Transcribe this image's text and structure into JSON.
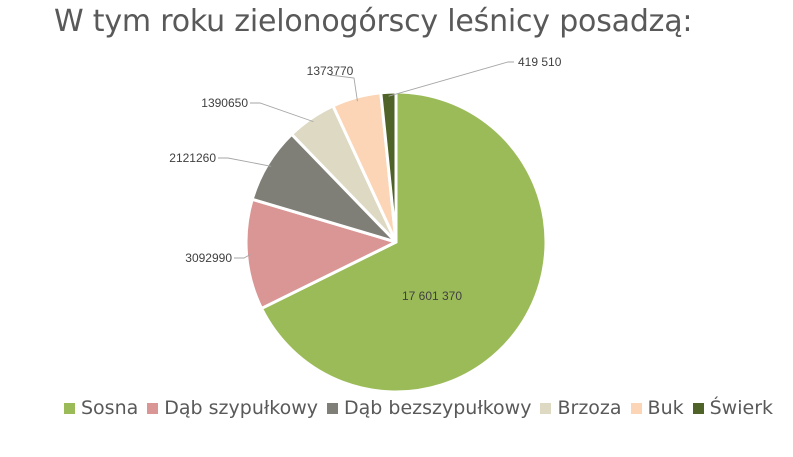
{
  "chart_data": {
    "type": "pie",
    "title": "W tym roku zielonogórscy leśnicy posadzą:",
    "categories": [
      "Sosna",
      "Dąb szypułkowy",
      "Dąb bezszypułkowy",
      "Brzoza",
      "Buk",
      "Świerk"
    ],
    "values": [
      17601370,
      3092990,
      2121260,
      1390650,
      1373770,
      419510
    ],
    "data_labels": [
      "17 601 370",
      "3092990",
      "2121260",
      "1390650",
      "1373770",
      "419 510"
    ],
    "colors": [
      "#9bbb59",
      "#d99694",
      "#7f7f77",
      "#ddd9c3",
      "#fbd5b5",
      "#4f6228"
    ],
    "legend_position": "bottom"
  }
}
